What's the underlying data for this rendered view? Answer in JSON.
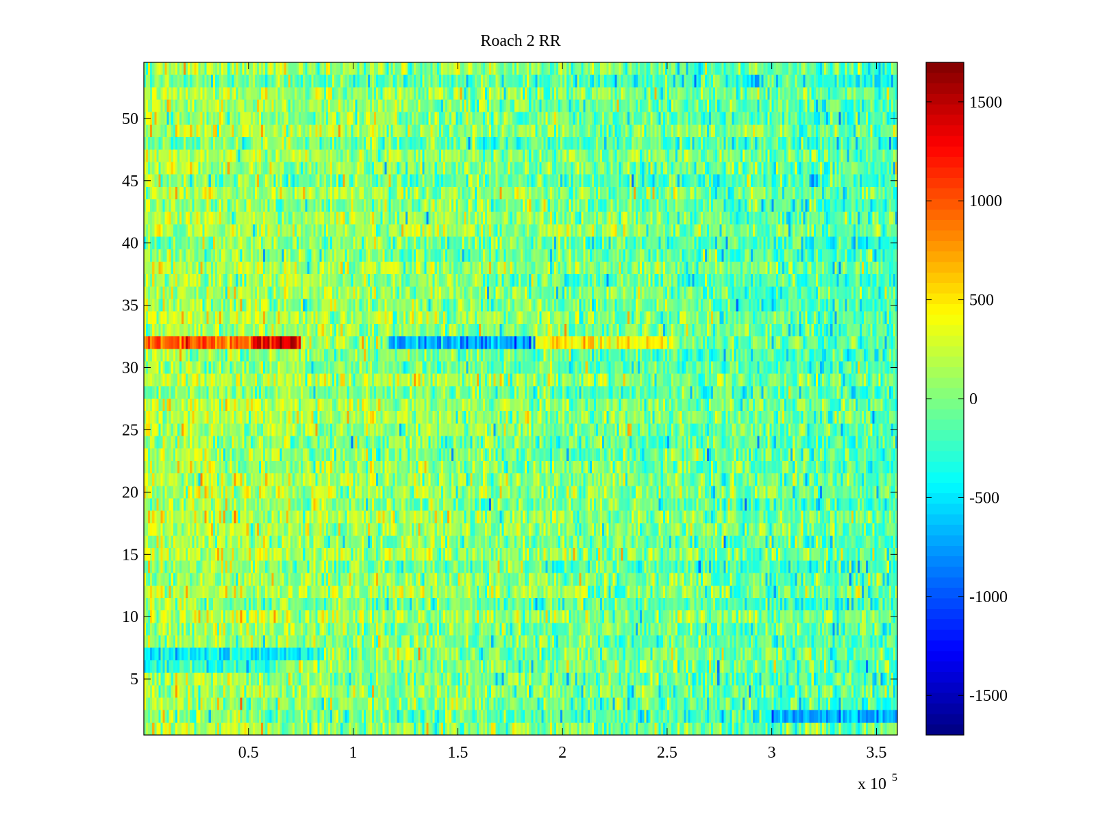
{
  "chart_data": {
    "type": "heatmap",
    "title": "Roach 2 RR",
    "xlabel": "",
    "ylabel": "",
    "x_multiplier_label": {
      "base": "x 10",
      "exponent": "5"
    },
    "xlim": [
      0,
      3.6
    ],
    "ylim": [
      0.5,
      54.5
    ],
    "x_ticks": [
      0.5,
      1,
      1.5,
      2,
      2.5,
      3,
      3.5
    ],
    "x_tick_labels": [
      "0.5",
      "1",
      "1.5",
      "2",
      "2.5",
      "3",
      "3.5"
    ],
    "y_ticks": [
      5,
      10,
      15,
      20,
      25,
      30,
      35,
      40,
      45,
      50
    ],
    "y_tick_labels": [
      "5",
      "10",
      "15",
      "20",
      "25",
      "30",
      "35",
      "40",
      "45",
      "50"
    ],
    "rows": 54,
    "columns": 360,
    "colormap": "jet",
    "colorbar": {
      "clim": [
        -1700,
        1700
      ],
      "ticks": [
        -1500,
        -1000,
        -500,
        0,
        500,
        1000,
        1500
      ],
      "tick_labels": [
        "-1500",
        "-1000",
        "-500",
        "0",
        "500",
        "1000",
        "1500"
      ]
    },
    "background_level": {
      "left_value": 150,
      "right_value": -180,
      "noise_amplitude": 450
    },
    "features": [
      {
        "row": 32,
        "x_start": 0.0,
        "x_end": 0.75,
        "value": 950,
        "description": "high band"
      },
      {
        "row": 32,
        "x_start": 0.52,
        "x_end": 0.75,
        "value": 1350,
        "description": "peak"
      },
      {
        "row": 32,
        "x_start": 1.17,
        "x_end": 1.87,
        "value": -750,
        "description": "low band"
      },
      {
        "row": 32,
        "x_start": 1.87,
        "x_end": 2.5,
        "value": 450,
        "description": "warm tail"
      },
      {
        "row": 7,
        "x_start": 0.0,
        "x_end": 0.85,
        "value": -450,
        "description": "low band"
      },
      {
        "row": 6,
        "x_start": 0.0,
        "x_end": 0.6,
        "value": -350,
        "description": "low band"
      },
      {
        "row": 2,
        "x_start": 3.0,
        "x_end": 3.6,
        "value": -700,
        "description": "low band"
      }
    ],
    "colors": {
      "axis": "#000000",
      "background": "#ffffff"
    }
  }
}
